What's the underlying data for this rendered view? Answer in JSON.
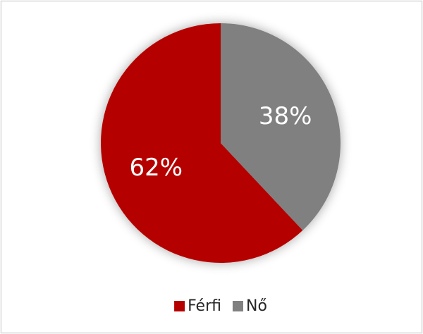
{
  "chart_data": {
    "type": "pie",
    "categories": [
      "Férfi",
      "Nő"
    ],
    "values": [
      62,
      38
    ],
    "value_labels": [
      "62%",
      "38%"
    ],
    "colors": [
      "#b50000",
      "#808080"
    ],
    "legend": "bottom"
  }
}
